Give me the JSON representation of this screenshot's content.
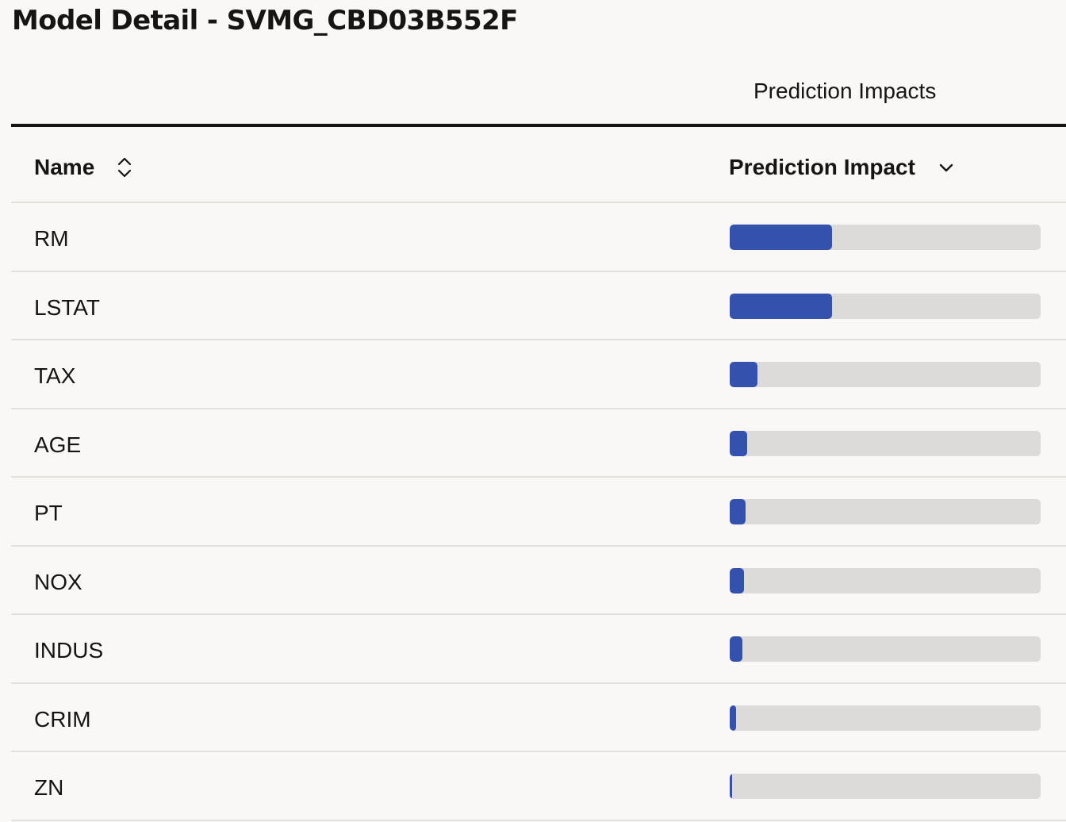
{
  "title": "Model Detail - SVMG_CBD03B552F",
  "table": {
    "group_header": "Prediction Impacts",
    "columns": {
      "name": "Name",
      "impact": "Prediction Impact"
    },
    "icons": {
      "name_sort": "sort-up-down-icon",
      "impact_sort": "chevron-down-icon"
    },
    "bar_colors": {
      "fill": "#3451ae",
      "track": "#dcdbd9"
    },
    "rows": [
      {
        "name": "RM",
        "impact": 0.33
      },
      {
        "name": "LSTAT",
        "impact": 0.33
      },
      {
        "name": "TAX",
        "impact": 0.09
      },
      {
        "name": "AGE",
        "impact": 0.055
      },
      {
        "name": "PT",
        "impact": 0.052
      },
      {
        "name": "NOX",
        "impact": 0.046
      },
      {
        "name": "INDUS",
        "impact": 0.04
      },
      {
        "name": "CRIM",
        "impact": 0.02
      },
      {
        "name": "ZN",
        "impact": 0.007
      }
    ]
  }
}
